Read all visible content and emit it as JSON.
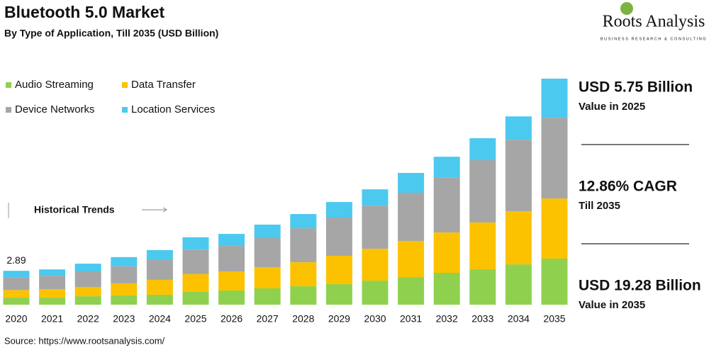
{
  "chart_data": {
    "type": "stacked-bar",
    "title": "Bluetooth 5.0 Market",
    "subtitle": "By Type of Application, Till 2035 (USD Billion)",
    "brand": "Roots Analysis",
    "brand_tagline": "BUSINESS RESEARCH & CONSULTING",
    "categories": [
      "2020",
      "2021",
      "2022",
      "2023",
      "2024",
      "2025",
      "2026",
      "2027",
      "2028",
      "2029",
      "2030",
      "2031",
      "2032",
      "2033",
      "2034",
      "2035"
    ],
    "series": [
      {
        "name": "Audio Streaming",
        "color": "#8fd14f",
        "values": [
          0.6,
          0.6,
          0.72,
          0.79,
          0.85,
          1.11,
          1.21,
          1.39,
          1.57,
          1.75,
          2.05,
          2.36,
          2.72,
          3.02,
          3.44,
          3.93
        ]
      },
      {
        "name": "Data Transfer",
        "color": "#fcc200",
        "values": [
          0.65,
          0.72,
          0.79,
          1.03,
          1.27,
          1.5,
          1.63,
          1.81,
          2.05,
          2.42,
          2.72,
          3.08,
          3.44,
          3.99,
          4.53,
          5.13
        ]
      },
      {
        "name": "Device Networks",
        "color": "#a6a6a6",
        "values": [
          1.1,
          1.15,
          1.33,
          1.45,
          1.69,
          2.09,
          2.17,
          2.48,
          2.9,
          3.26,
          3.68,
          4.11,
          4.71,
          5.32,
          6.1,
          6.89
        ]
      },
      {
        "name": "Location Services",
        "color": "#4cc9ef",
        "values": [
          0.54,
          0.54,
          0.66,
          0.79,
          0.85,
          1.05,
          1.03,
          1.15,
          1.21,
          1.33,
          1.39,
          1.69,
          1.75,
          1.87,
          1.99,
          3.33
        ]
      }
    ],
    "total_label": 2.89,
    "annotation": "Historical Trends",
    "highlights": [
      {
        "value": "USD 5.75 Billion",
        "note": "Value in 2025"
      },
      {
        "value": "12.86% CAGR",
        "note": "Till 2035"
      },
      {
        "value": "USD 19.28 Billion",
        "note": "Value in 2035"
      }
    ],
    "source": "Source: https://www.rootsanalysis.com/"
  }
}
